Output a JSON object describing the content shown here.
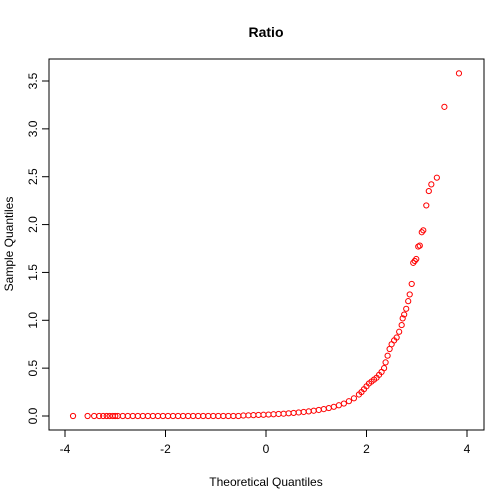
{
  "chart_data": {
    "type": "scatter",
    "title": "Ratio",
    "xlabel": "Theoretical Quantiles",
    "ylabel": "Sample Quantiles",
    "xlim": [
      -4,
      4
    ],
    "ylim": [
      0,
      3.5
    ],
    "x_ticks": [
      -4,
      -2,
      0,
      2,
      4
    ],
    "y_ticks": [
      0.0,
      0.5,
      1.0,
      1.5,
      2.0,
      2.5,
      3.0,
      3.5
    ],
    "x_tick_labels": [
      "-4",
      "-2",
      "0",
      "2",
      "4"
    ],
    "y_tick_labels": [
      "0.0",
      "0.5",
      "1.0",
      "1.5",
      "2.0",
      "2.5",
      "3.0",
      "3.5"
    ],
    "grid": false,
    "marker": "open-circle",
    "color": "#ff0000",
    "points": [
      [
        -3.84,
        0.0
      ],
      [
        -3.55,
        0.0
      ],
      [
        -3.42,
        0.0
      ],
      [
        -3.32,
        0.0
      ],
      [
        -3.24,
        0.0
      ],
      [
        -3.17,
        0.0
      ],
      [
        -3.11,
        0.0
      ],
      [
        -3.05,
        0.0
      ],
      [
        -3.0,
        0.0
      ],
      [
        -2.95,
        0.0
      ],
      [
        -2.85,
        0.0
      ],
      [
        -2.75,
        0.0
      ],
      [
        -2.65,
        0.0
      ],
      [
        -2.55,
        0.0
      ],
      [
        -2.45,
        0.0
      ],
      [
        -2.35,
        0.0
      ],
      [
        -2.25,
        0.0
      ],
      [
        -2.15,
        0.0
      ],
      [
        -2.05,
        0.0
      ],
      [
        -1.95,
        0.0
      ],
      [
        -1.85,
        0.0
      ],
      [
        -1.75,
        0.0
      ],
      [
        -1.65,
        0.0
      ],
      [
        -1.55,
        0.0
      ],
      [
        -1.45,
        0.0
      ],
      [
        -1.35,
        0.0
      ],
      [
        -1.25,
        0.0
      ],
      [
        -1.15,
        0.0
      ],
      [
        -1.05,
        0.0
      ],
      [
        -0.95,
        0.0
      ],
      [
        -0.85,
        0.0
      ],
      [
        -0.75,
        0.0
      ],
      [
        -0.65,
        0.0
      ],
      [
        -0.55,
        0.0
      ],
      [
        -0.45,
        0.005
      ],
      [
        -0.35,
        0.007
      ],
      [
        -0.25,
        0.009
      ],
      [
        -0.15,
        0.011
      ],
      [
        -0.05,
        0.013
      ],
      [
        0.05,
        0.015
      ],
      [
        0.15,
        0.018
      ],
      [
        0.25,
        0.021
      ],
      [
        0.35,
        0.024
      ],
      [
        0.45,
        0.028
      ],
      [
        0.55,
        0.032
      ],
      [
        0.65,
        0.037
      ],
      [
        0.75,
        0.042
      ],
      [
        0.85,
        0.048
      ],
      [
        0.95,
        0.055
      ],
      [
        1.05,
        0.063
      ],
      [
        1.15,
        0.072
      ],
      [
        1.25,
        0.083
      ],
      [
        1.35,
        0.096
      ],
      [
        1.45,
        0.112
      ],
      [
        1.55,
        0.13
      ],
      [
        1.65,
        0.155
      ],
      [
        1.75,
        0.185
      ],
      [
        1.85,
        0.225
      ],
      [
        1.9,
        0.25
      ],
      [
        1.95,
        0.28
      ],
      [
        2.0,
        0.31
      ],
      [
        2.05,
        0.34
      ],
      [
        2.1,
        0.36
      ],
      [
        2.15,
        0.38
      ],
      [
        2.2,
        0.4
      ],
      [
        2.25,
        0.43
      ],
      [
        2.3,
        0.46
      ],
      [
        2.35,
        0.5
      ],
      [
        2.38,
        0.56
      ],
      [
        2.42,
        0.63
      ],
      [
        2.46,
        0.7
      ],
      [
        2.5,
        0.75
      ],
      [
        2.55,
        0.79
      ],
      [
        2.6,
        0.82
      ],
      [
        2.65,
        0.88
      ],
      [
        2.7,
        0.95
      ],
      [
        2.72,
        1.02
      ],
      [
        2.75,
        1.06
      ],
      [
        2.79,
        1.12
      ],
      [
        2.83,
        1.2
      ],
      [
        2.86,
        1.27
      ],
      [
        2.9,
        1.38
      ],
      [
        2.93,
        1.6
      ],
      [
        2.96,
        1.62
      ],
      [
        2.99,
        1.64
      ],
      [
        3.03,
        1.77
      ],
      [
        3.06,
        1.78
      ],
      [
        3.1,
        1.92
      ],
      [
        3.13,
        1.94
      ],
      [
        3.19,
        2.2
      ],
      [
        3.24,
        2.35
      ],
      [
        3.29,
        2.42
      ],
      [
        3.4,
        2.49
      ],
      [
        3.55,
        3.23
      ],
      [
        3.84,
        3.58
      ]
    ]
  }
}
